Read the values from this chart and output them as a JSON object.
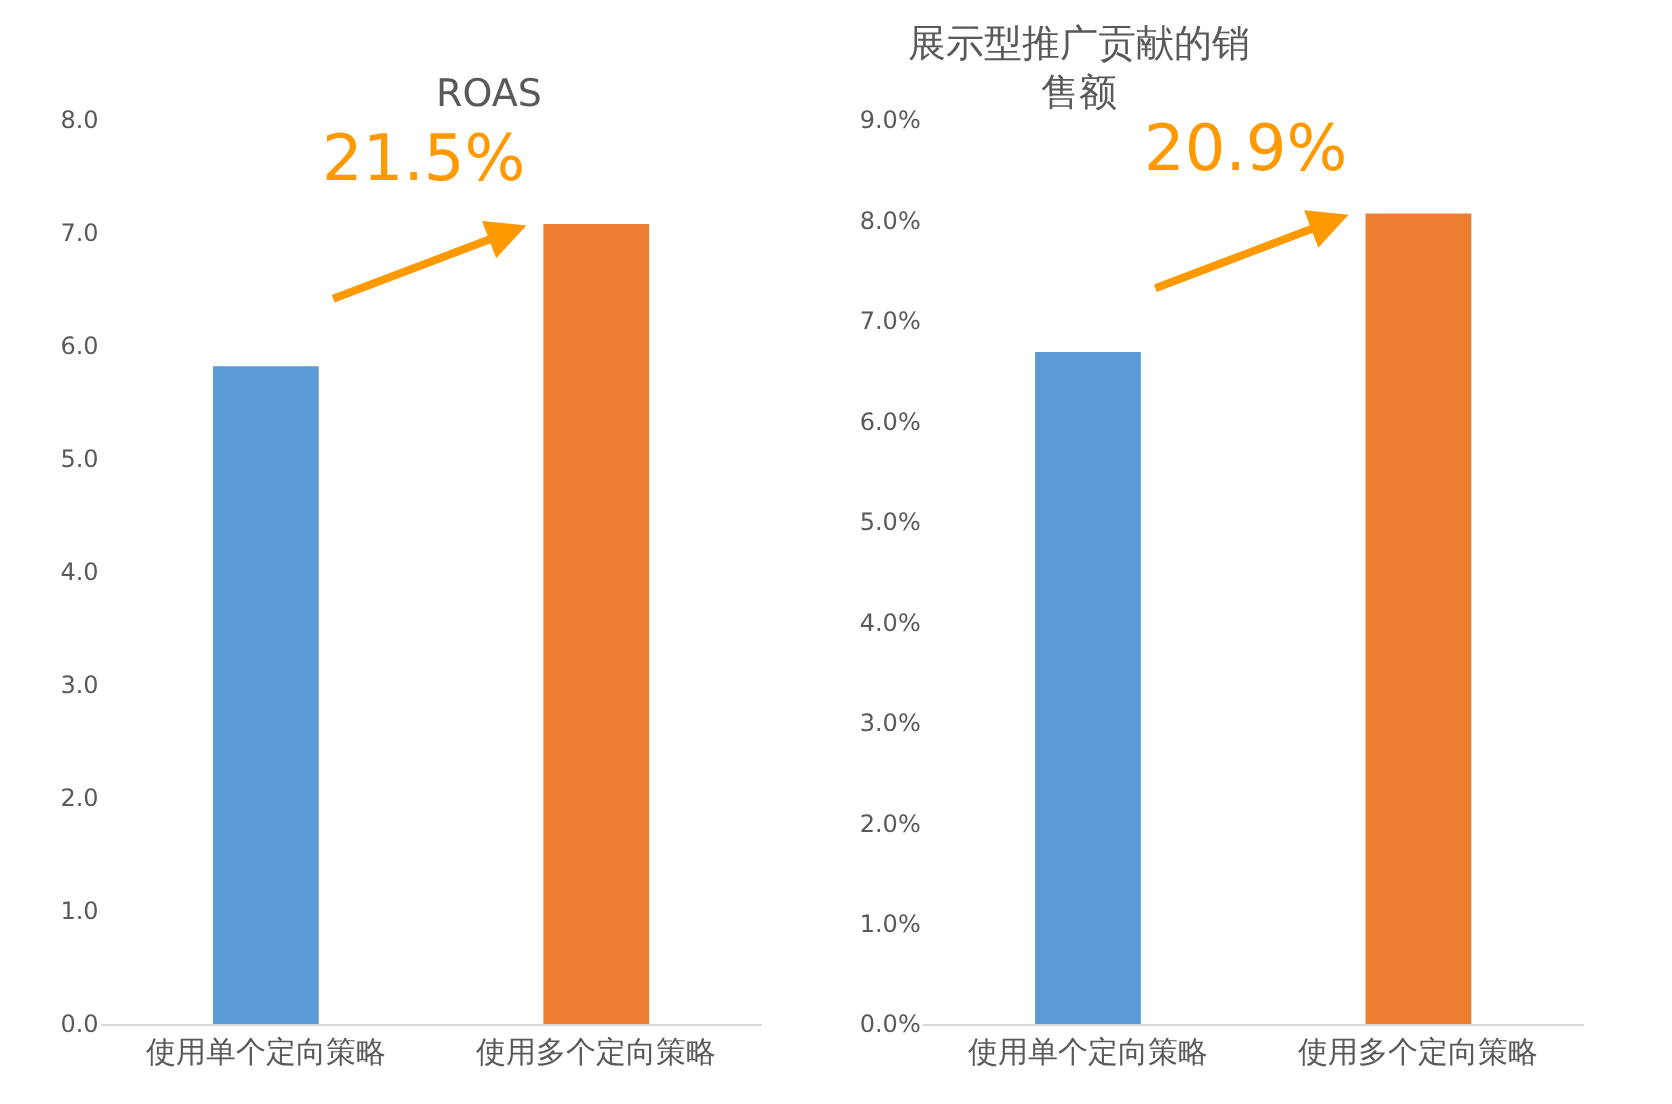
{
  "chart_data": [
    {
      "type": "bar",
      "title": "ROAS",
      "categories": [
        "使用单个定向策略",
        "使用多个定向策略"
      ],
      "colors": [
        "#5b9bd5",
        "#ed7d31"
      ],
      "values": [
        5.82,
        7.08
      ],
      "ylim": [
        0,
        8
      ],
      "yticks": [
        {
          "value": 0,
          "label": "0.0"
        },
        {
          "value": 1,
          "label": "1.0"
        },
        {
          "value": 2,
          "label": "2.0"
        },
        {
          "value": 3,
          "label": "3.0"
        },
        {
          "value": 4,
          "label": "4.0"
        },
        {
          "value": 5,
          "label": "5.0"
        },
        {
          "value": 6,
          "label": "6.0"
        },
        {
          "value": 7,
          "label": "7.0"
        },
        {
          "value": 8,
          "label": "8.0"
        }
      ],
      "annotations": [
        "21.5%"
      ]
    },
    {
      "type": "bar",
      "title": "展示型推广贡献的销售额",
      "categories": [
        "使用单个定向策略",
        "使用多个定向策略"
      ],
      "colors": [
        "#5b9bd5",
        "#ed7d31"
      ],
      "values": [
        6.69,
        8.07
      ],
      "ylim": [
        0,
        9
      ],
      "yticks": [
        {
          "value": 0,
          "label": "0.0%"
        },
        {
          "value": 1,
          "label": "1.0%"
        },
        {
          "value": 2,
          "label": "2.0%"
        },
        {
          "value": 3,
          "label": "3.0%"
        },
        {
          "value": 4,
          "label": "4.0%"
        },
        {
          "value": 5,
          "label": "5.0%"
        },
        {
          "value": 6,
          "label": "6.0%"
        },
        {
          "value": 7,
          "label": "7.0%"
        },
        {
          "value": 8,
          "label": "8.0%"
        },
        {
          "value": 9,
          "label": "9.0%"
        }
      ],
      "annotations": [
        "20.9%"
      ]
    }
  ]
}
